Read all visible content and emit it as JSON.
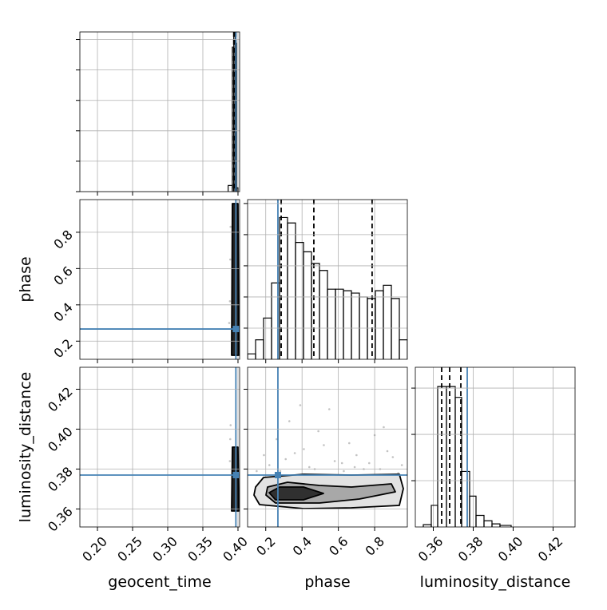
{
  "chart_data": {
    "type": "corner",
    "grid": true,
    "color": "#000000",
    "truth_color": "#4682b4",
    "parameters": [
      {
        "name": "geocent_time",
        "lim": [
          0.175,
          0.4023
        ],
        "ticks": [
          {
            "value": 0.2,
            "label": "0.20"
          },
          0.25,
          {
            "value": 0.3,
            "label": "0.30"
          },
          0.35,
          {
            "value": 0.4,
            "label": "0.40"
          }
        ],
        "truth": 0.397,
        "quantiles": [
          0.394,
          0.3955,
          0.397
        ],
        "hist": {
          "bins": [
            0.386,
            0.392,
            0.394,
            0.396,
            0.398,
            0.4
          ],
          "counts": [
            8,
            190,
            205,
            195,
            5
          ],
          "ylim": [
            0,
            210
          ],
          "yticks": [
            0,
            40,
            80,
            120,
            160,
            200
          ]
        }
      },
      {
        "name": "phase",
        "lim": [
          0.1,
          0.98
        ],
        "ticks": [
          0.2,
          0.4,
          0.6,
          0.8
        ],
        "truth": 0.267,
        "quantiles": [
          0.285,
          0.465,
          0.786
        ],
        "hist": {
          "bins": [
            0.1,
            0.144,
            0.188,
            0.232,
            0.276,
            0.32,
            0.364,
            0.408,
            0.452,
            0.496,
            0.54,
            0.584,
            0.628,
            0.672,
            0.716,
            0.76,
            0.804,
            0.848,
            0.892,
            0.936,
            0.98
          ],
          "counts": [
            7,
            25,
            53,
            98,
            182,
            175,
            150,
            138,
            123,
            114,
            90,
            90,
            88,
            85,
            80,
            78,
            88,
            95,
            78,
            25
          ],
          "ylim": [
            0,
            205
          ],
          "yticks": [
            40,
            80,
            120,
            160,
            200
          ]
        }
      },
      {
        "name": "luminosity_distance",
        "lim": [
          0.351,
          0.431
        ],
        "ticks": [
          0.36,
          0.38,
          {
            "value": 0.4,
            "label": "0.40"
          },
          0.42
        ],
        "truth": 0.377,
        "quantiles": [
          0.3642,
          0.3682,
          0.3738
        ],
        "hist": {
          "bins": [
            0.355,
            0.359,
            0.3622,
            0.3666,
            0.371,
            0.3742,
            0.3782,
            0.3814,
            0.3854,
            0.3894,
            0.3934,
            0.399
          ],
          "counts": [
            3,
            28,
            182,
            182,
            168,
            72,
            40,
            15,
            8,
            4,
            2
          ],
          "ylim": [
            0,
            207
          ],
          "yticks": [
            60,
            120,
            180
          ]
        }
      }
    ],
    "pairs": [
      {
        "contours": [
          {
            "x": [
              0.392,
              0.4,
              0.4011,
              0.3909
            ],
            "y": [
              0.958,
              0.958,
              0.122,
              0.122
            ]
          }
        ],
        "points": {
          "x": [
            0.3885,
            0.389,
            0.3875,
            0.3895
          ],
          "y": [
            0.42,
            0.65,
            0.3,
            0.83
          ]
        }
      },
      {
        "contours": [
          {
            "x": [
              0.392,
              0.4,
              0.4011,
              0.3909
            ],
            "y": [
              0.391,
              0.391,
              0.359,
              0.359
            ]
          }
        ],
        "points": {
          "x": [
            0.389,
            0.3885,
            0.3895
          ],
          "y": [
            0.395,
            0.384,
            0.402
          ]
        }
      },
      {
        "contours": [
          {
            "x": [
              0.144,
              0.188,
              0.408,
              0.672,
              0.936,
              0.958,
              0.936,
              0.672,
              0.408,
              0.166,
              0.1352
            ],
            "y": [
              0.371,
              0.3758,
              0.3774,
              0.377,
              0.3774,
              0.3702,
              0.3618,
              0.3606,
              0.3602,
              0.3622,
              0.367
            ]
          },
          {
            "x": [
              0.21,
              0.32,
              0.496,
              0.672,
              0.892,
              0.914,
              0.716,
              0.496,
              0.254,
              0.2012
            ],
            "y": [
              0.371,
              0.3734,
              0.3718,
              0.371,
              0.3726,
              0.3686,
              0.365,
              0.363,
              0.363,
              0.367
            ]
          },
          {
            "x": [
              0.2188,
              0.276,
              0.408,
              0.518,
              0.408,
              0.254
            ],
            "y": [
              0.3682,
              0.371,
              0.371,
              0.3678,
              0.3646,
              0.3646
            ]
          }
        ],
        "points": {
          "x": [
            0.15,
            0.22,
            0.31,
            0.36,
            0.44,
            0.52,
            0.58,
            0.63,
            0.7,
            0.77,
            0.83,
            0.9,
            0.95,
            0.26,
            0.41,
            0.49,
            0.66,
            0.74,
            0.87,
            0.33,
            0.55,
            0.62,
            0.8,
            0.93,
            0.19,
            0.47,
            0.69,
            0.85,
            0.28,
            0.39
          ],
          "y": [
            0.379,
            0.382,
            0.385,
            0.388,
            0.381,
            0.392,
            0.384,
            0.379,
            0.387,
            0.383,
            0.38,
            0.386,
            0.382,
            0.395,
            0.39,
            0.399,
            0.393,
            0.38,
            0.389,
            0.404,
            0.41,
            0.383,
            0.397,
            0.378,
            0.387,
            0.38,
            0.381,
            0.401,
            0.379,
            0.412
          ]
        }
      }
    ]
  }
}
